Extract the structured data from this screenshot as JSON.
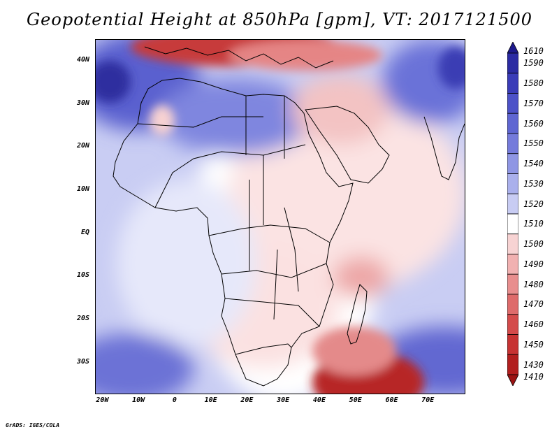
{
  "title": "Geopotential Height at 850hPa [gpm], VT: 2017121500",
  "footer": "GrADS: IGES/COLA",
  "map": {
    "lat_range": [
      -37,
      45
    ],
    "lon_range": [
      -22,
      80
    ],
    "lat_ticks": [
      {
        "value": 40,
        "label": "40N"
      },
      {
        "value": 30,
        "label": "30N"
      },
      {
        "value": 20,
        "label": "20N"
      },
      {
        "value": 10,
        "label": "10N"
      },
      {
        "value": 0,
        "label": "EQ"
      },
      {
        "value": -10,
        "label": "10S"
      },
      {
        "value": -20,
        "label": "20S"
      },
      {
        "value": -30,
        "label": "30S"
      }
    ],
    "lon_ticks": [
      {
        "value": -20,
        "label": "20W"
      },
      {
        "value": -10,
        "label": "10W"
      },
      {
        "value": 0,
        "label": "0"
      },
      {
        "value": 10,
        "label": "10E"
      },
      {
        "value": 20,
        "label": "20E"
      },
      {
        "value": 30,
        "label": "30E"
      },
      {
        "value": 40,
        "label": "40E"
      },
      {
        "value": 50,
        "label": "50E"
      },
      {
        "value": 60,
        "label": "60E"
      },
      {
        "value": 70,
        "label": "70E"
      }
    ]
  },
  "colorbar": {
    "labels": [
      "1610",
      "1590",
      "1580",
      "1570",
      "1560",
      "1550",
      "1540",
      "1530",
      "1520",
      "1510",
      "1500",
      "1490",
      "1480",
      "1470",
      "1460",
      "1450",
      "1430",
      "1410"
    ],
    "colors": [
      "#1d1a8c",
      "#2b2ba3",
      "#3a3cb8",
      "#4d52c8",
      "#5f66d2",
      "#757bdb",
      "#8f96e4",
      "#aab0ec",
      "#c8ccf3",
      "#ffffff",
      "#f7d3d3",
      "#f1b1b1",
      "#e88e8e",
      "#de6b6b",
      "#d44b4b",
      "#c73333",
      "#b21f1f",
      "#9c1414"
    ]
  }
}
